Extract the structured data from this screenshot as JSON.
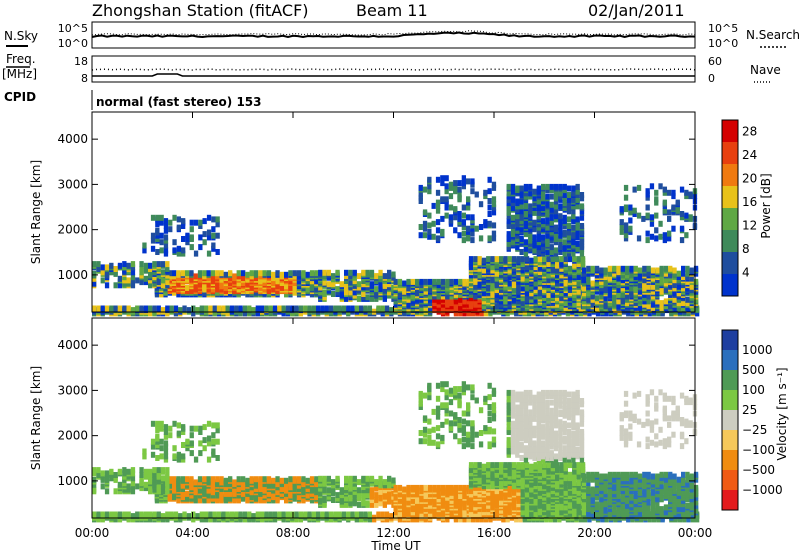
{
  "header": {
    "station": "Zhongshan Station (fitACF)",
    "beam": "Beam 11",
    "date": "02/Jan/2011"
  },
  "top_panels": {
    "nsky_label": "N.Sky",
    "nsearch_label": "N.Search",
    "noise_ticks_left": [
      "10^5",
      "10^0"
    ],
    "noise_ticks_right": [
      "10^5",
      "10^0"
    ],
    "freq_label_1": "Freq.",
    "freq_label_2": "[MHz]",
    "freq_ticks_left": [
      "18",
      "8"
    ],
    "nave_ticks_right": [
      "60",
      "0"
    ],
    "nave_label": "Nave",
    "cpid_label": "CPID",
    "cpid_text": "normal (fast stereo) 153"
  },
  "colors": {
    "power": [
      "#0033cc",
      "#1f4e9e",
      "#3f8a5a",
      "#5fa844",
      "#e8c21a",
      "#f07a10",
      "#e8400f",
      "#d40000"
    ],
    "velocity": [
      "#e31a1c",
      "#f05a13",
      "#f08c10",
      "#f5c85a",
      "#cdcdc0",
      "#7cc843",
      "#4f9a55",
      "#2a6fbd",
      "#1f3fa0"
    ]
  },
  "chart_data": [
    {
      "type": "heatmap",
      "title": "Power",
      "ylabel": "Slant Range [km]",
      "xlabel": "Time UT",
      "x_ticks": [
        "00:00",
        "04:00",
        "08:00",
        "12:00",
        "16:00",
        "20:00",
        "00:00"
      ],
      "y_ticks": [
        1000,
        2000,
        3000,
        4000
      ],
      "xlim_hours": [
        0,
        24
      ],
      "ylim_km": [
        180,
        4600
      ],
      "colorbar": {
        "label": "Power [dB]",
        "ticks": [
          4,
          8,
          12,
          16,
          20,
          24,
          28
        ],
        "range": [
          0,
          30
        ]
      }
    },
    {
      "type": "heatmap",
      "title": "Velocity",
      "ylabel": "Slant Range [km]",
      "xlabel": "Time UT",
      "x_ticks": [
        "00:00",
        "04:00",
        "08:00",
        "12:00",
        "16:00",
        "20:00",
        "00:00"
      ],
      "y_ticks": [
        1000,
        2000,
        3000,
        4000
      ],
      "xlim_hours": [
        0,
        24
      ],
      "ylim_km": [
        180,
        4600
      ],
      "colorbar": {
        "label": "Velocity [m s⁻¹]",
        "ticks": [
          "1000",
          "500",
          "100",
          "25",
          "−25",
          "−100",
          "−500",
          "−1000"
        ]
      }
    }
  ]
}
